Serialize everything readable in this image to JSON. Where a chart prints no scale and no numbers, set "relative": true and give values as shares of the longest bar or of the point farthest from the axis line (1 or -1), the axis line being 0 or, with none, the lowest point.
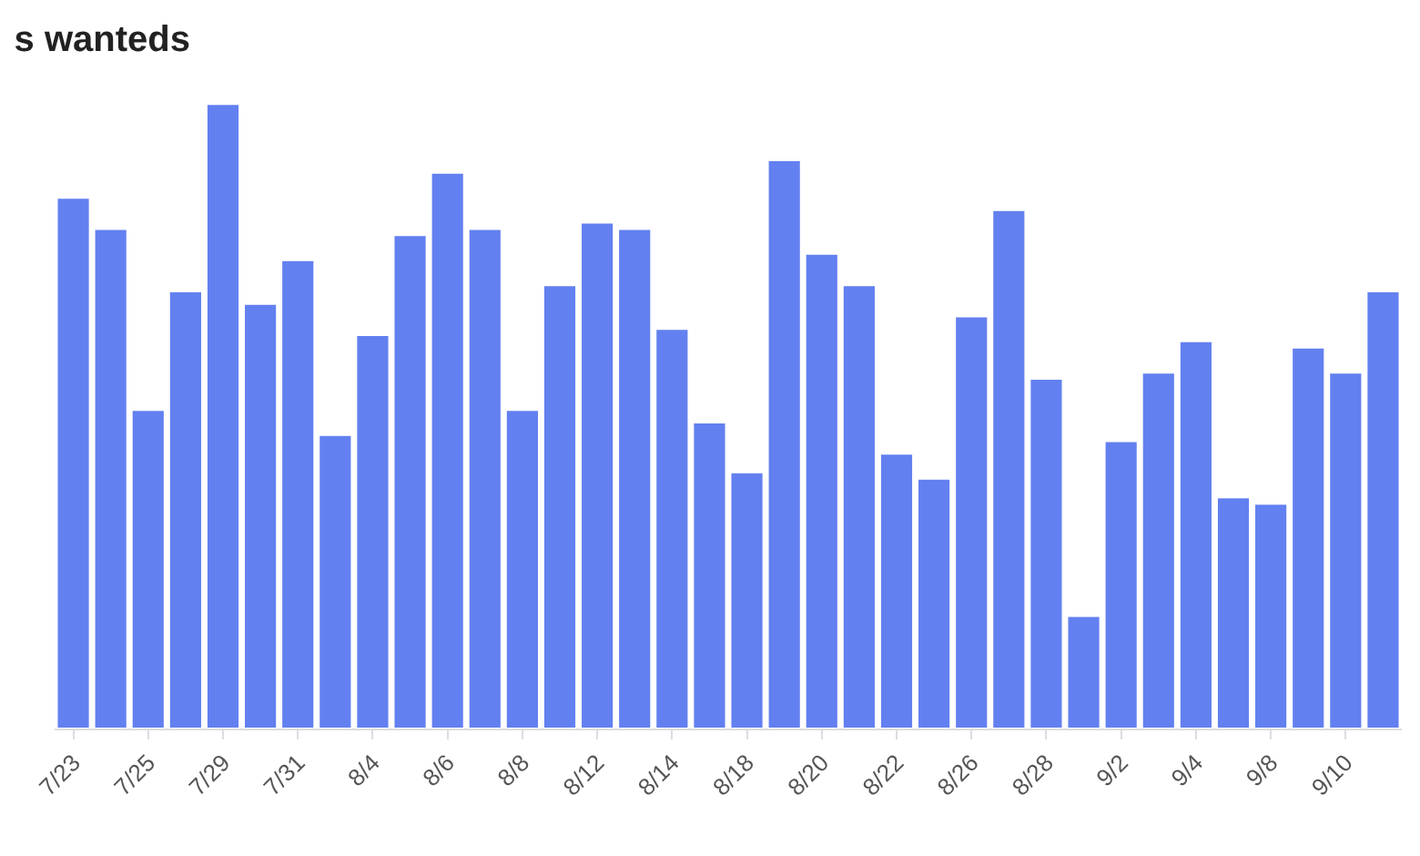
{
  "chart_data": {
    "type": "bar",
    "title": "s wanteds",
    "relative": true,
    "color": "#6380f0",
    "categories": [
      "7/23",
      null,
      "7/25",
      null,
      "7/29",
      null,
      "7/31",
      null,
      "8/4",
      null,
      "8/6",
      null,
      "8/8",
      null,
      "8/12",
      null,
      "8/14",
      null,
      "8/18",
      null,
      "8/20",
      null,
      "8/22",
      null,
      "8/26",
      null,
      "8/28",
      null,
      "9/2",
      null,
      "9/4",
      null,
      "9/8",
      null,
      "9/10",
      null
    ],
    "values": [
      0.85,
      0.8,
      0.51,
      0.7,
      1,
      0.68,
      0.75,
      0.47,
      0.63,
      0.79,
      0.89,
      0.8,
      0.51,
      0.71,
      0.81,
      0.8,
      0.64,
      0.49,
      0.41,
      0.91,
      0.76,
      0.71,
      0.44,
      0.4,
      0.66,
      0.83,
      0.56,
      0.18,
      0.46,
      0.57,
      0.62,
      0.37,
      0.36,
      0.61,
      0.57,
      0.7
    ]
  }
}
